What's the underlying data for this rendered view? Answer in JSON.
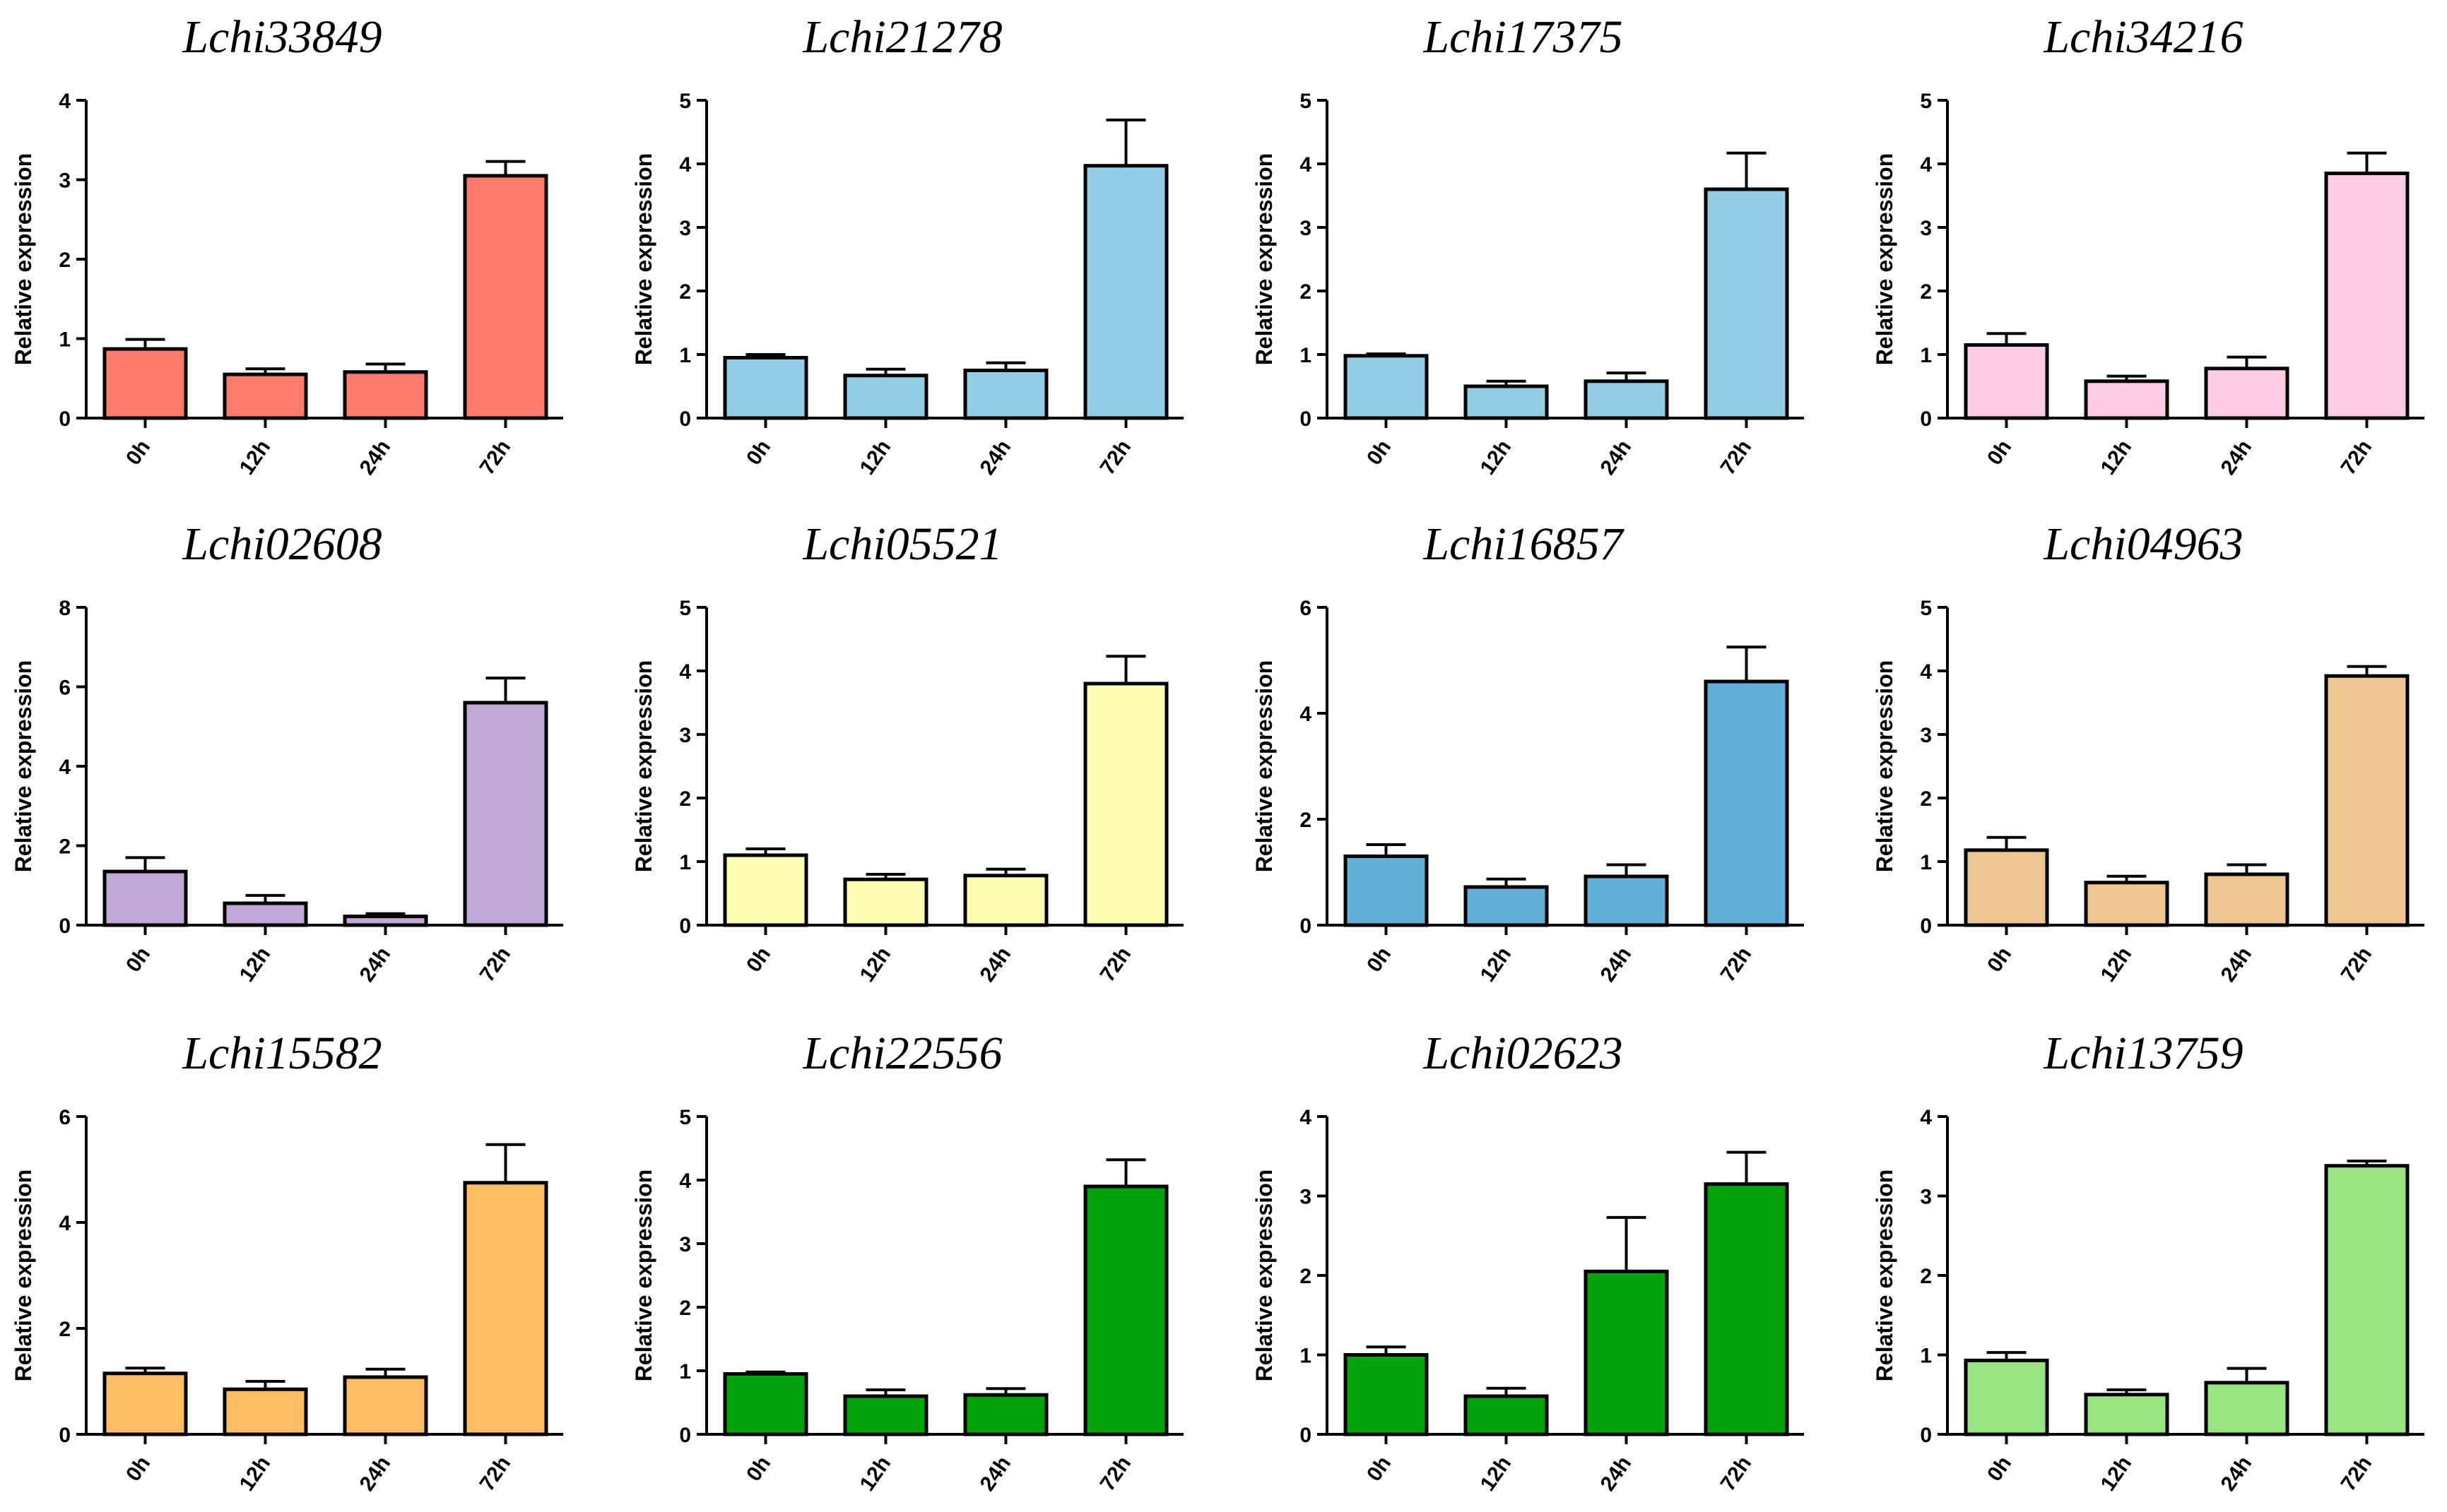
{
  "figure": {
    "description_free": true
  },
  "chart_data": [
    {
      "type": "bar",
      "title": "Lchi33849",
      "ylabel": "Relative expression",
      "xlabel": "",
      "categories": [
        "0h",
        "12h",
        "24h",
        "72h"
      ],
      "values": [
        0.87,
        0.55,
        0.58,
        3.05
      ],
      "errors": [
        0.12,
        0.07,
        0.1,
        0.18
      ],
      "ylim": [
        0,
        4
      ],
      "yticks": [
        0,
        1,
        2,
        3,
        4
      ],
      "color": "#FF7B6E",
      "grid": false
    },
    {
      "type": "bar",
      "title": "Lchi21278",
      "ylabel": "Relative expression",
      "xlabel": "",
      "categories": [
        "0h",
        "12h",
        "24h",
        "72h"
      ],
      "values": [
        0.95,
        0.67,
        0.75,
        3.97
      ],
      "errors": [
        0.05,
        0.1,
        0.12,
        0.72
      ],
      "ylim": [
        0,
        5
      ],
      "yticks": [
        0,
        1,
        2,
        3,
        4,
        5
      ],
      "color": "#93CDE3",
      "grid": false
    },
    {
      "type": "bar",
      "title": "Lchi17375",
      "ylabel": "Relative expression",
      "xlabel": "",
      "categories": [
        "0h",
        "12h",
        "24h",
        "72h"
      ],
      "values": [
        0.98,
        0.5,
        0.58,
        3.6
      ],
      "errors": [
        0.03,
        0.08,
        0.13,
        0.57
      ],
      "ylim": [
        0,
        5
      ],
      "yticks": [
        0,
        1,
        2,
        3,
        4,
        5
      ],
      "color": "#93CDE3",
      "grid": false
    },
    {
      "type": "bar",
      "title": "Lchi34216",
      "ylabel": "Relative expression",
      "xlabel": "",
      "categories": [
        "0h",
        "12h",
        "24h",
        "72h"
      ],
      "values": [
        1.15,
        0.58,
        0.78,
        3.85
      ],
      "errors": [
        0.18,
        0.08,
        0.18,
        0.32
      ],
      "ylim": [
        0,
        5
      ],
      "yticks": [
        0,
        1,
        2,
        3,
        4,
        5
      ],
      "color": "#FFCCE6",
      "grid": false
    },
    {
      "type": "bar",
      "title": "Lchi02608",
      "ylabel": "Relative expression",
      "xlabel": "",
      "categories": [
        "0h",
        "12h",
        "24h",
        "72h"
      ],
      "values": [
        1.35,
        0.55,
        0.22,
        5.6
      ],
      "errors": [
        0.35,
        0.2,
        0.07,
        0.62
      ],
      "ylim": [
        0,
        8
      ],
      "yticks": [
        0,
        2,
        4,
        6,
        8
      ],
      "color": "#C0A8D6",
      "grid": false
    },
    {
      "type": "bar",
      "title": "Lchi05521",
      "ylabel": "Relative expression",
      "xlabel": "",
      "categories": [
        "0h",
        "12h",
        "24h",
        "72h"
      ],
      "values": [
        1.1,
        0.72,
        0.78,
        3.8
      ],
      "errors": [
        0.1,
        0.08,
        0.1,
        0.43
      ],
      "ylim": [
        0,
        5
      ],
      "yticks": [
        0,
        1,
        2,
        3,
        4,
        5
      ],
      "color": "#FFFEB3",
      "grid": false
    },
    {
      "type": "bar",
      "title": "Lchi16857",
      "ylabel": "Relative expression",
      "xlabel": "",
      "categories": [
        "0h",
        "12h",
        "24h",
        "72h"
      ],
      "values": [
        1.3,
        0.72,
        0.92,
        4.6
      ],
      "errors": [
        0.22,
        0.15,
        0.22,
        0.65
      ],
      "ylim": [
        0,
        6
      ],
      "yticks": [
        0,
        2,
        4,
        6
      ],
      "color": "#62B0D8",
      "grid": false
    },
    {
      "type": "bar",
      "title": "Lchi04963",
      "ylabel": "Relative expression",
      "xlabel": "",
      "categories": [
        "0h",
        "12h",
        "24h",
        "72h"
      ],
      "values": [
        1.18,
        0.67,
        0.8,
        3.92
      ],
      "errors": [
        0.2,
        0.1,
        0.15,
        0.15
      ],
      "ylim": [
        0,
        5
      ],
      "yticks": [
        0,
        1,
        2,
        3,
        4,
        5
      ],
      "color": "#EEC692",
      "grid": false
    },
    {
      "type": "bar",
      "title": "Lchi15582",
      "ylabel": "Relative expression",
      "xlabel": "",
      "categories": [
        "0h",
        "12h",
        "24h",
        "72h"
      ],
      "values": [
        1.15,
        0.85,
        1.08,
        4.75
      ],
      "errors": [
        0.1,
        0.15,
        0.15,
        0.72
      ],
      "ylim": [
        0,
        6
      ],
      "yticks": [
        0,
        2,
        4,
        6
      ],
      "color": "#FFBD66",
      "grid": false
    },
    {
      "type": "bar",
      "title": "Lchi22556",
      "ylabel": "Relative expression",
      "xlabel": "",
      "categories": [
        "0h",
        "12h",
        "24h",
        "72h"
      ],
      "values": [
        0.95,
        0.6,
        0.62,
        3.9
      ],
      "errors": [
        0.03,
        0.1,
        0.1,
        0.42
      ],
      "ylim": [
        0,
        5
      ],
      "yticks": [
        0,
        1,
        2,
        3,
        4,
        5
      ],
      "color": "#00A10B",
      "grid": false
    },
    {
      "type": "bar",
      "title": "Lchi02623",
      "ylabel": "Relative expression",
      "xlabel": "",
      "categories": [
        "0h",
        "12h",
        "24h",
        "72h"
      ],
      "values": [
        1.0,
        0.48,
        2.05,
        3.15
      ],
      "errors": [
        0.1,
        0.1,
        0.68,
        0.4
      ],
      "ylim": [
        0,
        4
      ],
      "yticks": [
        0,
        1,
        2,
        3,
        4
      ],
      "color": "#00A10B",
      "grid": false
    },
    {
      "type": "bar",
      "title": "Lchi13759",
      "ylabel": "Relative expression",
      "xlabel": "",
      "categories": [
        "0h",
        "12h",
        "24h",
        "72h"
      ],
      "values": [
        0.93,
        0.5,
        0.65,
        3.38
      ],
      "errors": [
        0.1,
        0.06,
        0.18,
        0.06
      ],
      "ylim": [
        0,
        4
      ],
      "yticks": [
        0,
        1,
        2,
        3,
        4
      ],
      "color": "#99E380",
      "grid": false
    }
  ]
}
